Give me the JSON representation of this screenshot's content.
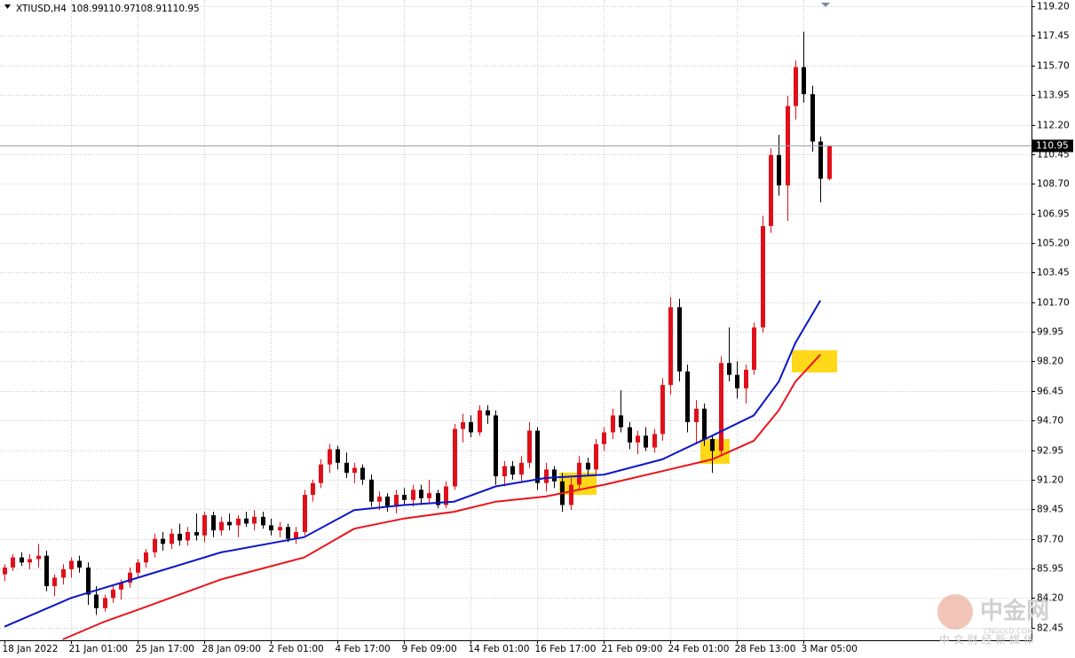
{
  "chart_data": {
    "type": "candlestick",
    "title": "XTIUSD,H4",
    "ohlc": [
      108.99,
      110.97,
      108.91,
      110.95
    ],
    "categories": [
      "18 Jan 2022",
      null,
      null,
      null,
      null,
      null,
      null,
      null,
      "21 Jan 01:00",
      null,
      null,
      null,
      null,
      null,
      null,
      null,
      "25 Jan 17:00",
      null,
      null,
      null,
      null,
      null,
      null,
      null,
      "28 Jan 09:00",
      null,
      null,
      null,
      null,
      null,
      null,
      null,
      "2 Feb 01:00",
      null,
      null,
      null,
      null,
      null,
      null,
      null,
      "4 Feb 17:00",
      null,
      null,
      null,
      null,
      null,
      null,
      null,
      "9 Feb 09:00",
      null,
      null,
      null,
      null,
      null,
      null,
      null,
      "14 Feb 01:00",
      null,
      null,
      null,
      null,
      null,
      null,
      null,
      "16 Feb 17:00",
      null,
      null,
      null,
      null,
      null,
      null,
      null,
      "21 Feb 09:00",
      null,
      null,
      null,
      null,
      null,
      null,
      null,
      "24 Feb 01:00",
      null,
      null,
      null,
      null,
      null,
      null,
      null,
      "28 Feb 13:00",
      null,
      null,
      null,
      null,
      null,
      null,
      null,
      "3 Mar 05:00",
      null,
      null,
      null
    ],
    "open": [
      85.6,
      86.0,
      86.6,
      86.3,
      86.5,
      86.7,
      84.9,
      85.4,
      85.9,
      86.4,
      86.0,
      84.4,
      83.6,
      84.2,
      84.7,
      85.1,
      85.7,
      86.3,
      86.9,
      87.7,
      87.4,
      88.0,
      87.6,
      88.1,
      87.9,
      89.1,
      88.2,
      88.7,
      88.5,
      88.9,
      88.6,
      89.0,
      88.5,
      88.2,
      88.4,
      87.7,
      88.1,
      90.3,
      91.0,
      92.1,
      93.0,
      92.2,
      91.6,
      91.9,
      91.2,
      89.9,
      90.2,
      89.6,
      90.3,
      90.0,
      90.6,
      90.1,
      90.4,
      89.7,
      90.8,
      94.2,
      94.6,
      94.0,
      95.3,
      95.0,
      91.4,
      92.0,
      91.5,
      92.2,
      94.1,
      91.0,
      91.8,
      91.1,
      89.7,
      90.9,
      92.2,
      91.8,
      93.3,
      94.0,
      95.0,
      94.3,
      93.4,
      93.8,
      93.1,
      93.9,
      96.8,
      101.4,
      97.6,
      94.6,
      95.4,
      93.6,
      92.9,
      98.1,
      97.4,
      96.6,
      97.7,
      100.2,
      106.2,
      110.4,
      108.6,
      113.3,
      115.6,
      114.0,
      111.2,
      108.99
    ],
    "high": [
      86.2,
      86.8,
      86.9,
      86.8,
      87.4,
      87.0,
      85.6,
      86.2,
      86.6,
      86.7,
      86.3,
      84.9,
      84.4,
      85.0,
      85.3,
      86.0,
      86.5,
      87.1,
      88.0,
      88.1,
      88.3,
      88.6,
      88.4,
      89.2,
      89.3,
      89.3,
      89.0,
      89.2,
      89.1,
      89.3,
      89.4,
      89.3,
      88.9,
      88.7,
      88.6,
      88.4,
      90.6,
      91.2,
      92.4,
      93.3,
      93.2,
      92.8,
      92.2,
      92.1,
      91.5,
      90.5,
      90.4,
      90.6,
      90.7,
      90.9,
      90.9,
      91.2,
      90.6,
      91.1,
      94.5,
      95.1,
      95.0,
      95.6,
      95.6,
      95.3,
      92.3,
      92.3,
      92.6,
      94.6,
      94.3,
      92.2,
      92.0,
      91.6,
      91.3,
      92.6,
      92.5,
      93.6,
      94.3,
      95.4,
      96.5,
      94.6,
      94.1,
      94.3,
      94.2,
      97.2,
      102.0,
      101.9,
      98.0,
      95.9,
      95.7,
      93.8,
      98.5,
      100.2,
      98.2,
      98.0,
      100.5,
      106.8,
      110.8,
      111.6,
      113.9,
      116.0,
      117.7,
      114.5,
      111.5,
      110.97
    ],
    "low": [
      85.2,
      85.8,
      86.1,
      85.9,
      86.0,
      84.6,
      84.3,
      85.0,
      85.4,
      85.7,
      83.8,
      83.2,
      83.4,
      83.9,
      84.1,
      84.8,
      85.4,
      86.0,
      86.6,
      87.0,
      87.1,
      87.3,
      87.3,
      87.6,
      87.5,
      87.8,
      87.9,
      88.2,
      87.8,
      88.4,
      88.2,
      88.3,
      87.9,
      87.8,
      87.5,
      87.4,
      87.9,
      89.9,
      90.7,
      91.6,
      91.8,
      91.3,
      91.0,
      90.9,
      89.6,
      89.4,
      89.3,
      89.2,
      89.7,
      89.6,
      89.7,
      89.8,
      89.5,
      89.5,
      90.6,
      93.4,
      93.7,
      93.8,
      94.5,
      90.9,
      90.8,
      91.2,
      91.1,
      91.9,
      90.6,
      90.5,
      90.7,
      89.3,
      89.4,
      90.6,
      91.4,
      91.5,
      92.9,
      93.6,
      94.0,
      93.0,
      92.7,
      92.9,
      92.8,
      93.5,
      96.2,
      97.0,
      94.0,
      93.3,
      93.2,
      91.6,
      92.6,
      97.0,
      96.0,
      95.7,
      97.4,
      99.9,
      105.8,
      108.0,
      106.5,
      112.5,
      113.5,
      110.6,
      107.6,
      108.91
    ],
    "close": [
      86.0,
      86.6,
      86.3,
      86.5,
      86.7,
      84.9,
      85.4,
      85.9,
      86.4,
      86.0,
      84.4,
      83.6,
      84.2,
      84.7,
      85.1,
      85.7,
      86.3,
      86.9,
      87.7,
      87.4,
      88.0,
      87.6,
      88.1,
      87.9,
      89.1,
      88.2,
      88.7,
      88.5,
      88.9,
      88.6,
      89.0,
      88.5,
      88.2,
      88.4,
      87.7,
      88.1,
      90.3,
      91.0,
      92.1,
      93.0,
      92.2,
      91.6,
      91.9,
      91.2,
      89.9,
      90.2,
      89.6,
      90.3,
      90.0,
      90.6,
      90.1,
      90.4,
      89.7,
      90.8,
      94.2,
      94.6,
      94.0,
      95.3,
      95.0,
      91.4,
      92.0,
      91.5,
      92.2,
      94.1,
      91.0,
      91.8,
      91.1,
      89.7,
      90.9,
      92.2,
      91.8,
      93.3,
      94.0,
      95.0,
      94.3,
      93.4,
      93.8,
      93.1,
      93.9,
      96.8,
      101.4,
      97.6,
      94.6,
      95.4,
      93.6,
      92.9,
      98.1,
      97.4,
      96.6,
      97.7,
      100.2,
      106.2,
      110.4,
      108.6,
      113.3,
      115.6,
      114.0,
      111.2,
      109.0,
      110.95
    ],
    "up_color": "#e0101a",
    "down_color": "#000000",
    "series": [
      {
        "color": "#0b16c8",
        "x": [
          0,
          8,
          16,
          26,
          36,
          42,
          48,
          54,
          59,
          65,
          72,
          79,
          85,
          90,
          93,
          95,
          98
        ],
        "values": [
          82.5,
          84.2,
          85.4,
          86.9,
          87.8,
          89.4,
          89.7,
          89.9,
          90.8,
          91.3,
          91.5,
          92.4,
          93.8,
          95.0,
          97.0,
          99.3,
          101.8
        ]
      },
      {
        "color": "#e8141c",
        "x": [
          7,
          12,
          16,
          26,
          36,
          42,
          48,
          54,
          59,
          65,
          72,
          79,
          85,
          90,
          93,
          95,
          98
        ],
        "values": [
          81.75,
          82.8,
          83.5,
          85.3,
          86.6,
          88.3,
          88.9,
          89.3,
          89.9,
          90.2,
          90.9,
          91.7,
          92.4,
          93.5,
          95.3,
          97.0,
          98.6
        ]
      }
    ],
    "price_line": 110.95,
    "ylim": [
      81.7,
      119.57
    ],
    "yticks": [
      82.45,
      {
        "value": 84.2,
        "label": "84.20"
      },
      85.95,
      {
        "value": 87.7,
        "label": "87.70"
      },
      89.45,
      {
        "value": 91.2,
        "label": "91.20"
      },
      92.95,
      {
        "value": 94.7,
        "label": "94.70"
      },
      96.45,
      {
        "value": 98.2,
        "label": "98.20"
      },
      99.95,
      {
        "value": 101.7,
        "label": "101.70"
      },
      103.45,
      {
        "value": 105.2,
        "label": "105.20"
      },
      106.95,
      {
        "value": 108.7,
        "label": "108.70"
      },
      110.45,
      {
        "value": 112.2,
        "label": "112.20"
      },
      113.95,
      {
        "value": 115.7,
        "label": "115.70"
      },
      117.45,
      {
        "value": 119.2,
        "label": "119.20"
      }
    ],
    "grid": true,
    "watermark": {
      "brand": "中金网",
      "site": "CNGOLD.COM",
      "slogan": "中 文 财 经 新 媒 体"
    }
  }
}
